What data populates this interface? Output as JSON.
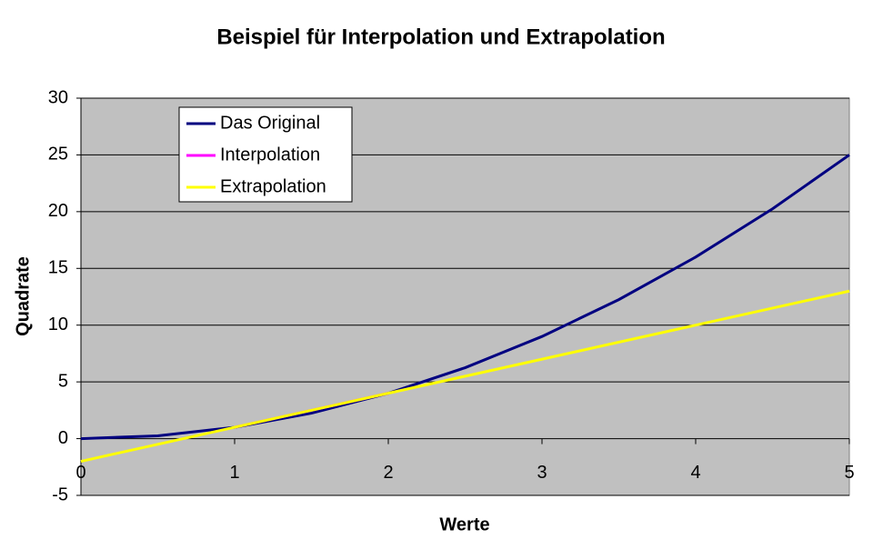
{
  "chart_data": {
    "type": "line",
    "title": "Beispiel für Interpolation und Extrapolation",
    "x_label": "Werte",
    "y_label": "Quadrate",
    "xlim": [
      0,
      5
    ],
    "xticks": [
      0,
      1,
      2,
      3,
      4,
      5
    ],
    "ylim": [
      -5,
      30
    ],
    "yticks": [
      -5,
      0,
      5,
      10,
      15,
      20,
      25,
      30
    ],
    "grid": true,
    "legend": "upper left",
    "background": "#c0c0c0",
    "series": [
      {
        "name": "Das Original",
        "color": "#000080",
        "x": [
          0,
          0.5,
          1,
          1.5,
          2,
          2.5,
          3,
          3.5,
          4,
          4.5,
          5
        ],
        "values": [
          0,
          0.25,
          1,
          2.25,
          4,
          6.25,
          9,
          12.25,
          16,
          20.25,
          25
        ]
      },
      {
        "name": "Interpolation",
        "color": "#ff00ff",
        "x": [
          1,
          2
        ],
        "values": [
          1,
          4
        ]
      },
      {
        "name": "Extrapolation",
        "color": "#ffff00",
        "x": [
          0,
          5
        ],
        "values": [
          -2,
          13
        ]
      }
    ]
  }
}
